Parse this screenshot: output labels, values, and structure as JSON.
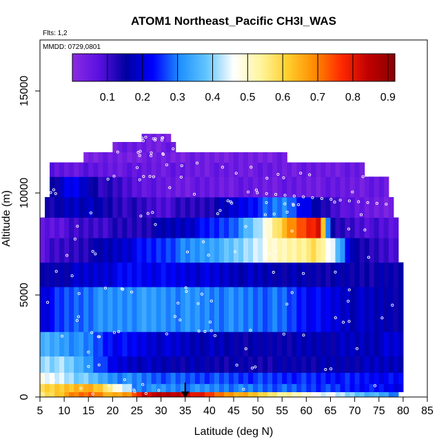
{
  "chart_data": {
    "type": "heatmap",
    "title": "ATOM1 Northeast_Pacific CH3I_WAS",
    "subtitle_flights": "Flts: 1,2",
    "subtitle_dates": "MMDD: 0729,0801",
    "xlabel": "Latitude (deg N)",
    "ylabel": "Altitude (m)",
    "xlim": [
      5,
      85
    ],
    "ylim": [
      0,
      17500
    ],
    "x_ticks": [
      "5",
      "10",
      "15",
      "20",
      "25",
      "30",
      "35",
      "40",
      "45",
      "50",
      "55",
      "60",
      "65",
      "70",
      "75",
      "80",
      "85"
    ],
    "y_ticks": [
      "0",
      "5000",
      "10000",
      "15000"
    ],
    "colorbar": {
      "range": [
        0,
        0.92
      ],
      "ticks": [
        "0.1",
        "0.2",
        "0.3",
        "0.4",
        "0.5",
        "0.6",
        "0.7",
        "0.8",
        "0.9"
      ],
      "colors": [
        "#8a2be2",
        "#5a10e0",
        "#0000a0",
        "#0000ff",
        "#1e90ff",
        "#63c6ff",
        "#ffffff",
        "#fff59d",
        "#ffcf2e",
        "#ff8c00",
        "#ff2a00",
        "#c00000",
        "#8b0000"
      ]
    },
    "marker": {
      "latitude": 35,
      "shape": "down-arrow"
    },
    "layers": [
      {
        "alt_bottom": 0,
        "alt_top": 250,
        "lat_start": 5,
        "lat_end": 79,
        "profile": [
          [
            5,
            0.56
          ],
          [
            8,
            0.62
          ],
          [
            12,
            0.7
          ],
          [
            16,
            0.74
          ],
          [
            20,
            0.64
          ],
          [
            24,
            0.7
          ],
          [
            26,
            0.84
          ],
          [
            32,
            0.86
          ],
          [
            36,
            0.84
          ],
          [
            42,
            0.72
          ],
          [
            50,
            0.62
          ],
          [
            56,
            0.54
          ],
          [
            62,
            0.48
          ],
          [
            68,
            0.42
          ],
          [
            72,
            0.38
          ],
          [
            76,
            0.34
          ],
          [
            79,
            0.28
          ]
        ]
      },
      {
        "alt_bottom": 250,
        "alt_top": 650,
        "lat_start": 5,
        "lat_end": 24,
        "profile": [
          [
            5,
            0.58
          ],
          [
            10,
            0.62
          ],
          [
            14,
            0.66
          ],
          [
            18,
            0.6
          ],
          [
            21,
            0.48
          ],
          [
            24,
            0.42
          ]
        ]
      },
      {
        "alt_bottom": 250,
        "alt_top": 650,
        "lat_start": 24,
        "lat_end": 80,
        "profile": [
          [
            24,
            0.3
          ],
          [
            40,
            0.3
          ],
          [
            60,
            0.26
          ],
          [
            75,
            0.22
          ],
          [
            80,
            0.2
          ]
        ]
      },
      {
        "alt_bottom": 650,
        "alt_top": 1200,
        "lat_start": 5,
        "lat_end": 80,
        "profile": [
          [
            5,
            0.46
          ],
          [
            10,
            0.44
          ],
          [
            15,
            0.38
          ],
          [
            20,
            0.32
          ],
          [
            30,
            0.28
          ],
          [
            50,
            0.26
          ],
          [
            70,
            0.24
          ],
          [
            80,
            0.22
          ]
        ]
      },
      {
        "alt_bottom": 1200,
        "alt_top": 2000,
        "lat_start": 5,
        "lat_end": 80,
        "profile": [
          [
            5,
            0.42
          ],
          [
            10,
            0.4
          ],
          [
            15,
            0.32
          ],
          [
            20,
            0.2
          ],
          [
            30,
            0.16
          ],
          [
            50,
            0.14
          ],
          [
            70,
            0.16
          ],
          [
            80,
            0.18
          ]
        ]
      },
      {
        "alt_bottom": 2000,
        "alt_top": 3200,
        "lat_start": 5,
        "lat_end": 80,
        "profile": [
          [
            5,
            0.36
          ],
          [
            10,
            0.34
          ],
          [
            15,
            0.3
          ],
          [
            20,
            0.24
          ],
          [
            30,
            0.2
          ],
          [
            50,
            0.16
          ],
          [
            70,
            0.18
          ],
          [
            80,
            0.2
          ]
        ]
      },
      {
        "alt_bottom": 3200,
        "alt_top": 5400,
        "lat_start": 5,
        "lat_end": 80,
        "profile": [
          [
            5,
            0.2
          ],
          [
            10,
            0.26
          ],
          [
            15,
            0.3
          ],
          [
            25,
            0.32
          ],
          [
            35,
            0.31
          ],
          [
            45,
            0.3
          ],
          [
            55,
            0.28
          ],
          [
            62,
            0.22
          ],
          [
            70,
            0.18
          ],
          [
            80,
            0.16
          ]
        ]
      },
      {
        "alt_bottom": 5400,
        "alt_top": 6600,
        "lat_start": 5,
        "lat_end": 80,
        "profile": [
          [
            5,
            0.14
          ],
          [
            15,
            0.18
          ],
          [
            25,
            0.22
          ],
          [
            35,
            0.2
          ],
          [
            50,
            0.16
          ],
          [
            70,
            0.14
          ],
          [
            80,
            0.14
          ]
        ]
      },
      {
        "alt_bottom": 6600,
        "alt_top": 7800,
        "lat_start": 5,
        "lat_end": 79,
        "profile": [
          [
            5,
            0.08
          ],
          [
            15,
            0.14
          ],
          [
            25,
            0.22
          ],
          [
            35,
            0.3
          ],
          [
            45,
            0.38
          ],
          [
            55,
            0.52
          ],
          [
            62,
            0.58
          ],
          [
            66,
            0.42
          ],
          [
            70,
            0.14
          ],
          [
            79,
            0.1
          ]
        ]
      },
      {
        "alt_bottom": 7800,
        "alt_top": 8800,
        "lat_start": 5,
        "lat_end": 79,
        "profile": [
          [
            5,
            0.06
          ],
          [
            15,
            0.1
          ],
          [
            25,
            0.12
          ],
          [
            35,
            0.18
          ],
          [
            45,
            0.28
          ],
          [
            50,
            0.4
          ],
          [
            55,
            0.62
          ],
          [
            60,
            0.76
          ],
          [
            63,
            0.82
          ],
          [
            65,
            0.12
          ],
          [
            79,
            0.06
          ]
        ]
      },
      {
        "alt_bottom": 8800,
        "alt_top": 9800,
        "lat_start": 6,
        "lat_end": 78,
        "profile": [
          [
            6,
            0.12
          ],
          [
            12,
            0.2
          ],
          [
            20,
            0.14
          ],
          [
            30,
            0.1
          ],
          [
            40,
            0.14
          ],
          [
            50,
            0.26
          ],
          [
            56,
            0.32
          ],
          [
            62,
            0.16
          ],
          [
            70,
            0.06
          ],
          [
            78,
            0.05
          ]
        ]
      },
      {
        "alt_bottom": 9800,
        "alt_top": 10800,
        "lat_start": 7,
        "lat_end": 77,
        "profile": [
          [
            7,
            0.14
          ],
          [
            12,
            0.22
          ],
          [
            18,
            0.12
          ],
          [
            30,
            0.05
          ],
          [
            50,
            0.05
          ],
          [
            70,
            0.05
          ],
          [
            77,
            0.05
          ]
        ]
      },
      {
        "alt_bottom": 10800,
        "alt_top": 11500,
        "lat_start": 7,
        "lat_end": 72,
        "profile": [
          [
            7,
            0.06
          ],
          [
            20,
            0.05
          ],
          [
            40,
            0.04
          ],
          [
            60,
            0.04
          ],
          [
            72,
            0.04
          ]
        ]
      },
      {
        "alt_bottom": 11500,
        "alt_top": 12000,
        "lat_start": 14,
        "lat_end": 56,
        "profile": [
          [
            14,
            0.04
          ],
          [
            30,
            0.04
          ],
          [
            56,
            0.04
          ]
        ]
      },
      {
        "alt_bottom": 12000,
        "alt_top": 12500,
        "lat_start": 20,
        "lat_end": 33,
        "profile": [
          [
            20,
            0.04
          ],
          [
            33,
            0.04
          ]
        ]
      },
      {
        "alt_bottom": 12500,
        "alt_top": 12900,
        "lat_start": 26,
        "lat_end": 32,
        "profile": [
          [
            26,
            0.04
          ],
          [
            32,
            0.04
          ]
        ]
      }
    ]
  }
}
